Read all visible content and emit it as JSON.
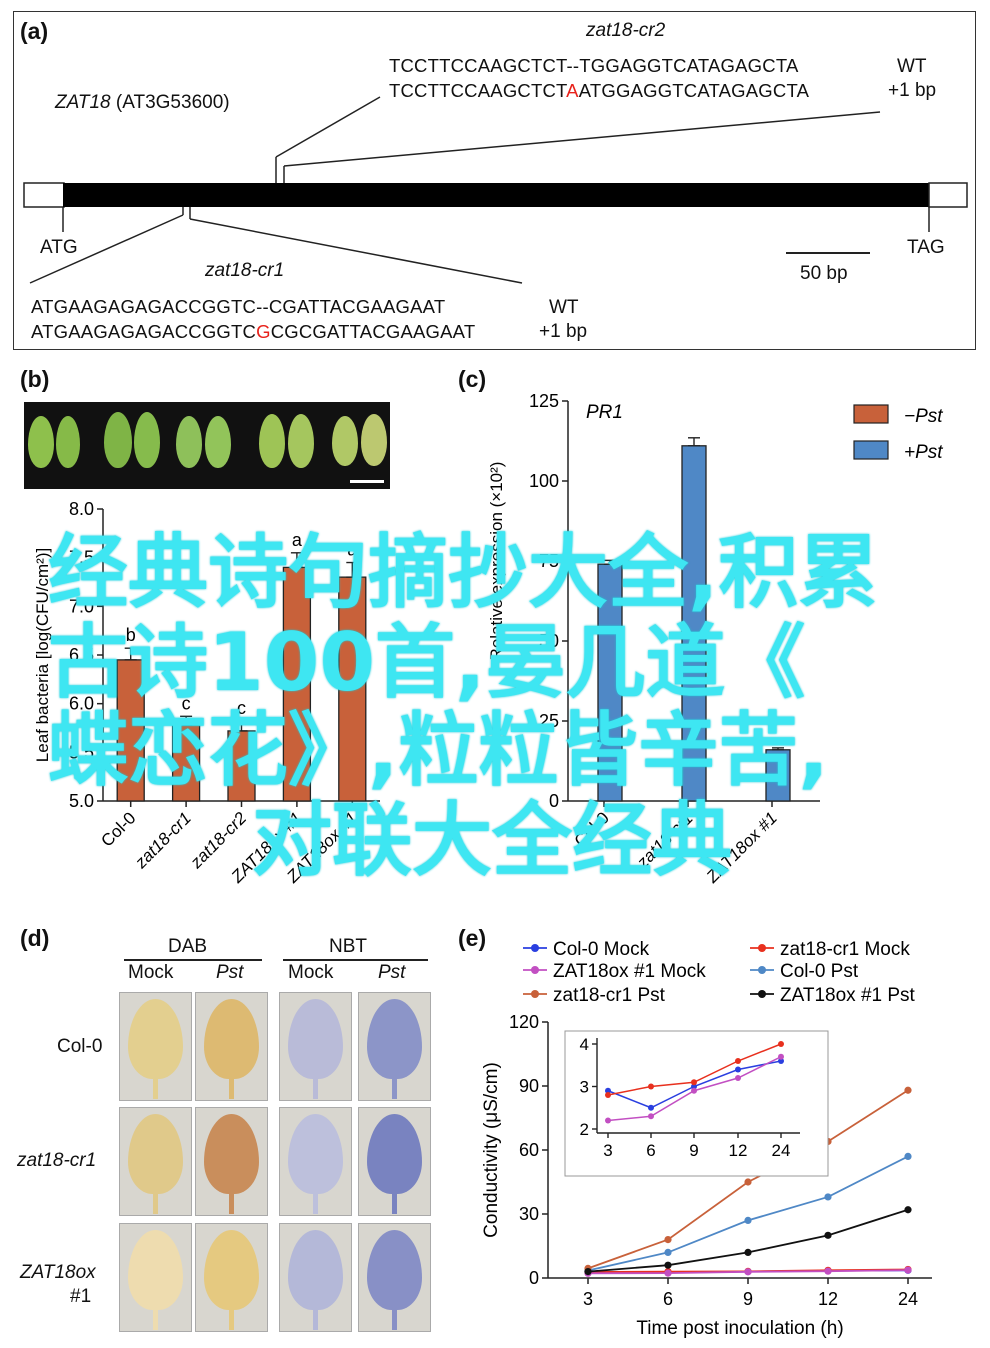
{
  "panel_a": {
    "label": "(a)",
    "gene_name": "ZAT18",
    "gene_id": "(AT3G53600)",
    "start_codon": "ATG",
    "stop_codon": "TAG",
    "scale_bar": "50 bp",
    "cr2": {
      "name": "zat18-cr2",
      "wt_seq_left": "TCCTTCCAAGCTCT",
      "wt_seq_gap": "--",
      "wt_seq_right": "TGGAGGTCATAGAGCTA",
      "wt_label": "WT",
      "mut_seq_left": "TCCTTCCAAGCTCT",
      "mut_insert": "A",
      "mut_seq_right": "ATGGAGGTCATAGAGCTA",
      "mut_label": "+1 bp"
    },
    "cr1": {
      "name": "zat18-cr1",
      "wt_seq_left": "ATGAAGAGAGACCGGTC",
      "wt_seq_gap": "--",
      "wt_seq_right": "CGATTACGAAGAAT",
      "wt_label": "WT",
      "mut_seq_left": "ATGAAGAGAGACCGGTC",
      "mut_insert": "G",
      "mut_seq_right": "CGCGATTACGAAGAAT",
      "mut_label": "+1 bp"
    }
  },
  "panel_b": {
    "label": "(b)",
    "ylabel": "Leaf bacteria [log(CFU/cm²)]",
    "ylim": [
      5.0,
      8.0
    ],
    "yticks": [
      "5.0",
      "5.5",
      "6.0",
      "6.5",
      "7.0",
      "7.5",
      "8.0"
    ]
  },
  "panel_c": {
    "label": "(c)",
    "gene_title": "PR1",
    "ylabel": "Relative expression (×10²)",
    "ylim": [
      0,
      125
    ],
    "yticks": [
      "0",
      "25",
      "50",
      "75",
      "100",
      "125"
    ],
    "legend": [
      "−Pst",
      "+Pst"
    ]
  },
  "panel_d": {
    "label": "(d)",
    "stain1": "DAB",
    "stain2": "NBT",
    "cols": [
      "Mock",
      "Pst",
      "Mock",
      "Pst"
    ],
    "rows": [
      "Col-0",
      "zat18-cr1",
      "ZAT18ox",
      "#1"
    ]
  },
  "panel_e": {
    "label": "(e)",
    "legend": [
      {
        "name": "Col-0 Mock",
        "color": "#2a3fe0"
      },
      {
        "name": "Col-0 Pst",
        "color": "#4f88c6"
      },
      {
        "name": "zat18-cr1 Mock",
        "color": "#e8301e"
      },
      {
        "name": "zat18-cr1 Pst",
        "color": "#c8613a"
      },
      {
        "name": "ZAT18ox #1 Mock",
        "color": "#c24fc2"
      },
      {
        "name": "ZAT18ox #1 Pst",
        "color": "#111111"
      }
    ],
    "ylabel": "Conductivity (μS/cm)",
    "xlabel": "Time post inoculation (h)"
  },
  "colors": {
    "minus_pst": "#c8613a",
    "plus_pst": "#4f88c6",
    "mutation": "#e8221b",
    "watermark": "#3ee6f2"
  },
  "chart_data": [
    {
      "type": "bar",
      "panel": "b",
      "categories": [
        "Col-0",
        "zat18-cr1",
        "zat18-cr2",
        "ZAT18ox #1",
        "ZAT18ox #1"
      ],
      "values": [
        6.45,
        5.78,
        5.72,
        7.4,
        7.3
      ],
      "errors": [
        0.12,
        0.09,
        0.1,
        0.15,
        0.15
      ],
      "letters": [
        "b",
        "c",
        "c",
        "a",
        "a"
      ],
      "ylabel": "Leaf bacteria [log(CFU/cm²)]",
      "ylim": [
        5.0,
        8.0
      ],
      "color": "#c8613a"
    },
    {
      "type": "bar",
      "panel": "c",
      "categories": [
        "Col-0",
        "zat18-cr1",
        "ZAT18ox #1"
      ],
      "series": [
        {
          "name": "−Pst",
          "values": [
            0,
            0,
            0
          ],
          "color": "#c8613a"
        },
        {
          "name": "+Pst",
          "values": [
            74,
            111,
            16
          ],
          "errors": [
            1.2,
            2.5,
            0.6
          ],
          "color": "#4f88c6"
        }
      ],
      "title": "PR1",
      "ylabel": "Relative expression (×10²)",
      "ylim": [
        0,
        125
      ],
      "legend_position": "top-right"
    },
    {
      "type": "line",
      "panel": "e",
      "x": [
        3,
        6,
        9,
        12,
        24
      ],
      "xticks": [
        "3",
        "6",
        "9",
        "12",
        "24"
      ],
      "yticks": [
        "0",
        "30",
        "60",
        "90",
        "120"
      ],
      "ylim": [
        0,
        120
      ],
      "series": [
        {
          "name": "Col-0 Mock",
          "values": [
            2.9,
            2.5,
            3.0,
            3.4,
            3.6
          ],
          "color": "#2a3fe0",
          "marker": "circle"
        },
        {
          "name": "zat18-cr1 Mock",
          "values": [
            2.8,
            3.0,
            3.1,
            3.6,
            4.0
          ],
          "color": "#e8301e",
          "marker": "square"
        },
        {
          "name": "ZAT18ox #1 Mock",
          "values": [
            2.2,
            2.3,
            2.9,
            3.2,
            3.7
          ],
          "color": "#c24fc2",
          "marker": "circle-open"
        },
        {
          "name": "Col-0 Pst",
          "values": [
            3.5,
            12,
            27,
            38,
            57
          ],
          "color": "#4f88c6",
          "marker": "triangle-up"
        },
        {
          "name": "zat18-cr1 Pst",
          "values": [
            4.5,
            18,
            45,
            64,
            88
          ],
          "color": "#c8613a",
          "marker": "triangle-down"
        },
        {
          "name": "ZAT18ox #1 Pst",
          "values": [
            3,
            6,
            12,
            20,
            32
          ],
          "color": "#111111",
          "marker": "diamond"
        }
      ],
      "ylabel": "Conductivity (μS/cm)",
      "xlabel": "Time post inoculation (h)",
      "inset": {
        "ylim": [
          2,
          4
        ],
        "yticks": [
          "2",
          "3",
          "4"
        ],
        "xticks": [
          "3",
          "6",
          "9",
          "12",
          "24"
        ]
      }
    }
  ],
  "watermark": {
    "line1": "经典诗句摘抄大全,积累",
    "line2": "古诗100首,晏几道《",
    "line3": "蝶恋花》,粒粒皆辛苦,",
    "line4": "对联大全经典"
  }
}
